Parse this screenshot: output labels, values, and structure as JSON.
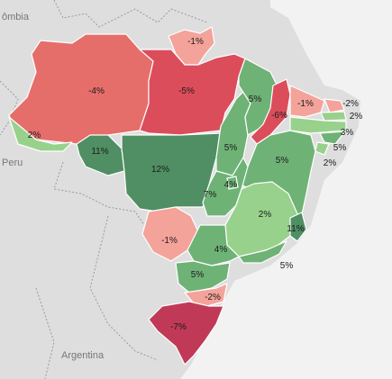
{
  "countries": {
    "colombia": "ômbia",
    "peru": "Peru",
    "argentina": "Argentina"
  },
  "colors": {
    "background": "#f2f2f2",
    "land": "#dedede",
    "strong_green": "#4f8f63",
    "mid_green": "#6fb276",
    "light_green": "#98d18c",
    "light_red": "#f4a39a",
    "mid_red": "#e66e6a",
    "strong_red": "#dc4d5c",
    "dark_red": "#c03a58"
  },
  "states": [
    {
      "id": "AM",
      "value": "-4%"
    },
    {
      "id": "PA",
      "value": "-5%"
    },
    {
      "id": "RR",
      "value": "-1%"
    },
    {
      "id": "AC",
      "value": "2%"
    },
    {
      "id": "RO",
      "value": "11%"
    },
    {
      "id": "MT",
      "value": "12%"
    },
    {
      "id": "TO",
      "value": "5%"
    },
    {
      "id": "MA",
      "value": "5%"
    },
    {
      "id": "PI",
      "value": "-6%"
    },
    {
      "id": "CE",
      "value": "-1%"
    },
    {
      "id": "RN",
      "value": "-2%"
    },
    {
      "id": "PB",
      "value": "2%"
    },
    {
      "id": "PE",
      "value": "3%"
    },
    {
      "id": "AL",
      "value": "5%"
    },
    {
      "id": "SE",
      "value": "2%"
    },
    {
      "id": "BA",
      "value": "5%"
    },
    {
      "id": "GO",
      "value": "7%"
    },
    {
      "id": "DF",
      "value": "4%"
    },
    {
      "id": "MG",
      "value": "2%"
    },
    {
      "id": "ES",
      "value": "11%"
    },
    {
      "id": "MS",
      "value": "-1%"
    },
    {
      "id": "SP",
      "value": "4%"
    },
    {
      "id": "RJ",
      "value": "5%"
    },
    {
      "id": "PR",
      "value": "5%"
    },
    {
      "id": "SC",
      "value": "-2%"
    },
    {
      "id": "RS",
      "value": "-7%"
    }
  ]
}
